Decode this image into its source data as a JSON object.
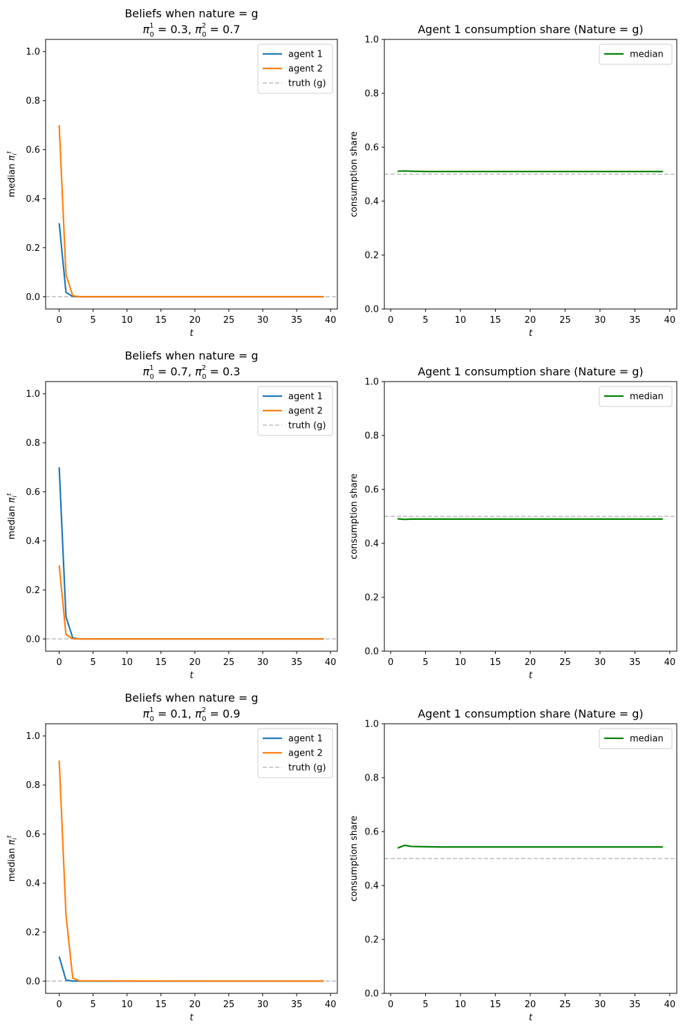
{
  "chart_data": [
    {
      "type": "line",
      "title": "Beliefs when nature = g",
      "subtitle": {
        "pi1": "0.3",
        "pi2": "0.7"
      },
      "xlabel": "t",
      "ylabel": "median",
      "xlim": [
        -2,
        41
      ],
      "ylim": [
        -0.05,
        1.05
      ],
      "xticks": [
        0,
        5,
        10,
        15,
        20,
        25,
        30,
        35,
        40
      ],
      "yticks": [
        "0.0",
        "0.2",
        "0.4",
        "0.6",
        "0.8",
        "1.0"
      ],
      "truth_line": 0.0,
      "legend_position": "top-right",
      "legend": [
        "agent 1",
        "agent 2",
        "truth (g)"
      ],
      "series": [
        {
          "name": "agent 1",
          "color": "#1f77b4",
          "x": [
            0,
            1,
            2,
            3,
            39
          ],
          "y": [
            0.3,
            0.018,
            0.001,
            0.0,
            0.0
          ]
        },
        {
          "name": "agent 2",
          "color": "#ff7f0e",
          "x": [
            0,
            1,
            2,
            3,
            39
          ],
          "y": [
            0.7,
            0.09,
            0.004,
            0.0,
            0.0
          ]
        }
      ]
    },
    {
      "type": "line",
      "title": "Agent 1 consumption share (Nature = g)",
      "xlabel": "t",
      "ylabel": "consumption share",
      "xlim": [
        -0.9,
        41
      ],
      "ylim": [
        0,
        1
      ],
      "xticks": [
        0,
        5,
        10,
        15,
        20,
        25,
        30,
        35,
        40
      ],
      "yticks": [
        "0.0",
        "0.2",
        "0.4",
        "0.6",
        "0.8",
        "1.0"
      ],
      "reference_line": 0.5,
      "legend_position": "top-right",
      "legend": [
        "median"
      ],
      "series": [
        {
          "name": "median",
          "color": "#008000",
          "x": [
            1,
            2,
            3,
            5,
            7,
            39
          ],
          "y": [
            0.511,
            0.512,
            0.511,
            0.51,
            0.51,
            0.51
          ]
        }
      ]
    },
    {
      "type": "line",
      "title": "Beliefs when nature = g",
      "subtitle": {
        "pi1": "0.7",
        "pi2": "0.3"
      },
      "xlabel": "t",
      "ylabel": "median",
      "xlim": [
        -2,
        41
      ],
      "ylim": [
        -0.05,
        1.05
      ],
      "xticks": [
        0,
        5,
        10,
        15,
        20,
        25,
        30,
        35,
        40
      ],
      "yticks": [
        "0.0",
        "0.2",
        "0.4",
        "0.6",
        "0.8",
        "1.0"
      ],
      "truth_line": 0.0,
      "legend_position": "top-right",
      "legend": [
        "agent 1",
        "agent 2",
        "truth (g)"
      ],
      "series": [
        {
          "name": "agent 1",
          "color": "#1f77b4",
          "x": [
            0,
            1,
            2,
            3,
            39
          ],
          "y": [
            0.7,
            0.09,
            0.004,
            0.0,
            0.0
          ]
        },
        {
          "name": "agent 2",
          "color": "#ff7f0e",
          "x": [
            0,
            1,
            2,
            3,
            39
          ],
          "y": [
            0.3,
            0.018,
            0.001,
            0.0,
            0.0
          ]
        }
      ]
    },
    {
      "type": "line",
      "title": "Agent 1 consumption share (Nature = g)",
      "xlabel": "t",
      "ylabel": "consumption share",
      "xlim": [
        -0.9,
        41
      ],
      "ylim": [
        0,
        1
      ],
      "xticks": [
        0,
        5,
        10,
        15,
        20,
        25,
        30,
        35,
        40
      ],
      "yticks": [
        "0.0",
        "0.2",
        "0.4",
        "0.6",
        "0.8",
        "1.0"
      ],
      "reference_line": 0.5,
      "legend_position": "top-right",
      "legend": [
        "median"
      ],
      "series": [
        {
          "name": "median",
          "color": "#008000",
          "x": [
            1,
            2,
            3,
            5,
            7,
            39
          ],
          "y": [
            0.491,
            0.489,
            0.49,
            0.49,
            0.49,
            0.49
          ]
        }
      ]
    },
    {
      "type": "line",
      "title": "Beliefs when nature = g",
      "subtitle": {
        "pi1": "0.1",
        "pi2": "0.9"
      },
      "xlabel": "t",
      "ylabel": "median",
      "xlim": [
        -2,
        41
      ],
      "ylim": [
        -0.05,
        1.05
      ],
      "xticks": [
        0,
        5,
        10,
        15,
        20,
        25,
        30,
        35,
        40
      ],
      "yticks": [
        "0.0",
        "0.2",
        "0.4",
        "0.6",
        "0.8",
        "1.0"
      ],
      "truth_line": 0.0,
      "legend_position": "top-right",
      "legend": [
        "agent 1",
        "agent 2",
        "truth (g)"
      ],
      "series": [
        {
          "name": "agent 1",
          "color": "#1f77b4",
          "x": [
            0,
            1,
            2,
            3,
            39
          ],
          "y": [
            0.1,
            0.004,
            0.0,
            0.0,
            0.0
          ]
        },
        {
          "name": "agent 2",
          "color": "#ff7f0e",
          "x": [
            0,
            1,
            2,
            3,
            39
          ],
          "y": [
            0.9,
            0.27,
            0.012,
            0.001,
            0.0
          ]
        }
      ]
    },
    {
      "type": "line",
      "title": "Agent 1 consumption share (Nature = g)",
      "xlabel": "t",
      "ylabel": "consumption share",
      "xlim": [
        -0.9,
        41
      ],
      "ylim": [
        0,
        1
      ],
      "xticks": [
        0,
        5,
        10,
        15,
        20,
        25,
        30,
        35,
        40
      ],
      "yticks": [
        "0.0",
        "0.2",
        "0.4",
        "0.6",
        "0.8",
        "1.0"
      ],
      "reference_line": 0.5,
      "legend_position": "top-right",
      "legend": [
        "median"
      ],
      "series": [
        {
          "name": "median",
          "color": "#008000",
          "x": [
            1,
            2,
            3,
            5,
            7,
            39
          ],
          "y": [
            0.539,
            0.549,
            0.545,
            0.544,
            0.543,
            0.543
          ]
        }
      ]
    }
  ]
}
